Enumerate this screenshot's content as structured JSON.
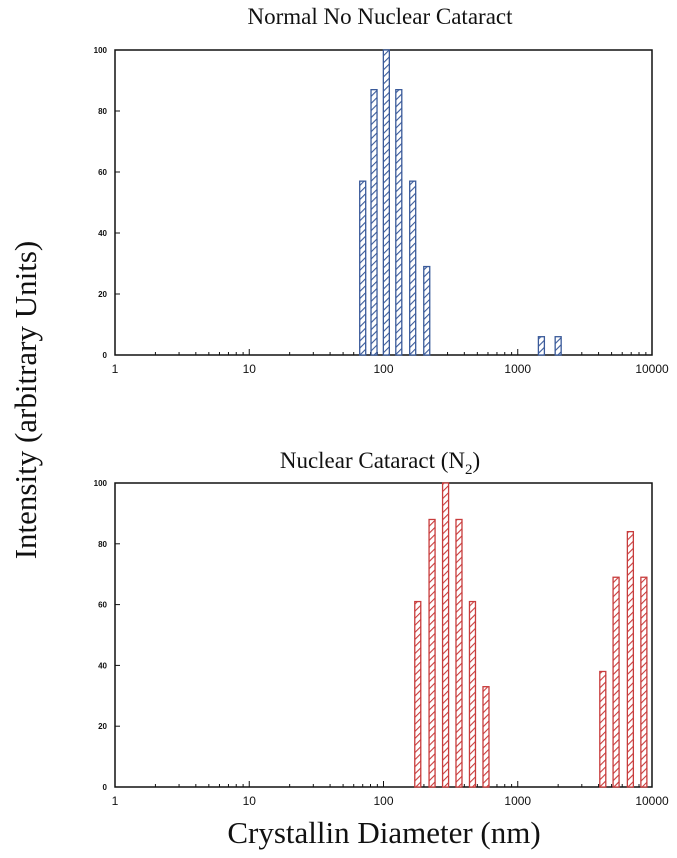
{
  "figure": {
    "ylabel": "Intensity (arbitrary Units)",
    "xlabel": "Crystallin Diameter (nm)"
  },
  "chart_data": [
    {
      "type": "bar",
      "title": "Normal No Nuclear Cataract",
      "title_subscript": "",
      "title_suffix": "",
      "xscale": "log",
      "xlim": [
        1,
        10000
      ],
      "ylim": [
        0,
        100
      ],
      "yticks": [
        0,
        20,
        40,
        60,
        80,
        100
      ],
      "xticks": [
        1,
        10,
        100,
        1000,
        10000
      ],
      "xtick_labels": [
        "1",
        "10",
        "100",
        "1000",
        "10000"
      ],
      "color": "#3a5a9a",
      "series": [
        {
          "name": "Normal",
          "x": [
            70,
            85,
            105,
            130,
            165,
            210,
            1500,
            2000
          ],
          "values": [
            57,
            87,
            100,
            87,
            57,
            29,
            6,
            6
          ]
        }
      ]
    },
    {
      "type": "bar",
      "title": "Nuclear Cataract (N",
      "title_subscript": "2",
      "title_suffix": ")",
      "xscale": "log",
      "xlim": [
        1,
        10000
      ],
      "ylim": [
        0,
        100
      ],
      "yticks": [
        0,
        20,
        40,
        60,
        80,
        100
      ],
      "xticks": [
        1,
        10,
        100,
        1000,
        10000
      ],
      "xtick_labels": [
        "1",
        "10",
        "100",
        "1000",
        "10000"
      ],
      "color": "#c83c3c",
      "series": [
        {
          "name": "Nuclear Cataract",
          "x": [
            180,
            230,
            290,
            365,
            460,
            580,
            4300,
            5400,
            6900,
            8700
          ],
          "values": [
            61,
            88,
            100,
            88,
            61,
            33,
            38,
            69,
            84,
            69
          ]
        }
      ]
    }
  ]
}
